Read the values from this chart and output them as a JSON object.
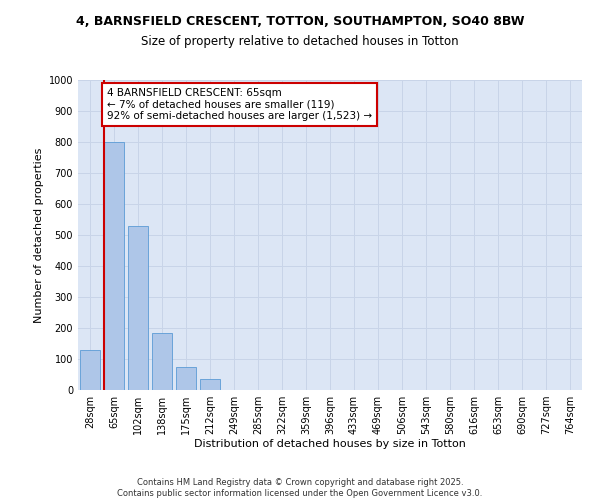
{
  "title_line1": "4, BARNSFIELD CRESCENT, TOTTON, SOUTHAMPTON, SO40 8BW",
  "title_line2": "Size of property relative to detached houses in Totton",
  "xlabel": "Distribution of detached houses by size in Totton",
  "ylabel": "Number of detached properties",
  "categories": [
    "28sqm",
    "65sqm",
    "102sqm",
    "138sqm",
    "175sqm",
    "212sqm",
    "249sqm",
    "285sqm",
    "322sqm",
    "359sqm",
    "396sqm",
    "433sqm",
    "469sqm",
    "506sqm",
    "543sqm",
    "580sqm",
    "616sqm",
    "653sqm",
    "690sqm",
    "727sqm",
    "764sqm"
  ],
  "values": [
    130,
    800,
    530,
    185,
    75,
    35,
    0,
    0,
    0,
    0,
    0,
    0,
    0,
    0,
    0,
    0,
    0,
    0,
    0,
    0,
    0
  ],
  "bar_color": "#aec6e8",
  "bar_edge_color": "#5b9bd5",
  "highlight_bar_index": 1,
  "highlight_color": "#cc0000",
  "grid_color": "#c8d4e8",
  "background_color": "#dce6f5",
  "ylim": [
    0,
    1000
  ],
  "yticks": [
    0,
    100,
    200,
    300,
    400,
    500,
    600,
    700,
    800,
    900,
    1000
  ],
  "annotation_box_text": "4 BARNSFIELD CRESCENT: 65sqm\n← 7% of detached houses are smaller (119)\n92% of semi-detached houses are larger (1,523) →",
  "footer_line1": "Contains HM Land Registry data © Crown copyright and database right 2025.",
  "footer_line2": "Contains public sector information licensed under the Open Government Licence v3.0.",
  "title_fontsize": 9,
  "subtitle_fontsize": 8.5,
  "axis_label_fontsize": 8,
  "tick_fontsize": 7,
  "annotation_fontsize": 7.5,
  "footer_fontsize": 6
}
